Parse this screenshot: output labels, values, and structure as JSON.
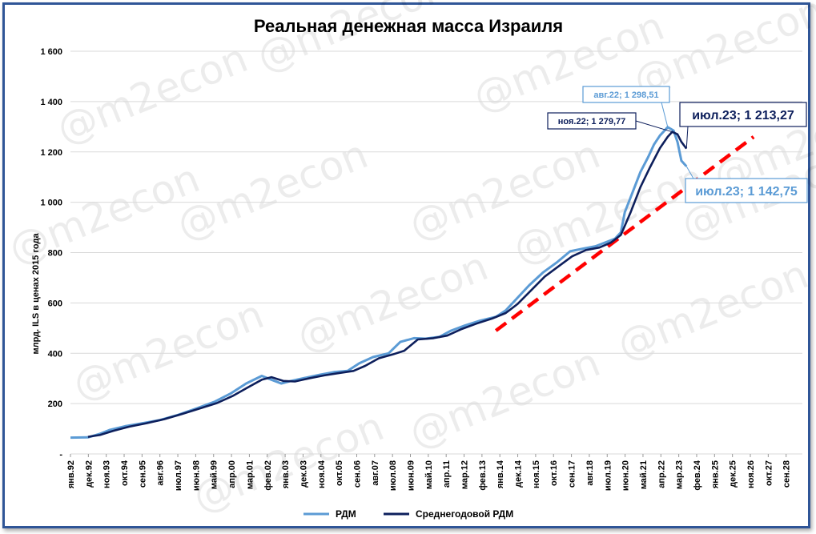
{
  "chart_data": {
    "type": "line",
    "title": "Реальная денежная масса Израиля",
    "xlabel": "",
    "ylabel": "млрд. ILS в ценах 2015 года",
    "ylim": [
      0,
      1600
    ],
    "y_ticks": [
      {
        "value": 0,
        "label": "-"
      },
      {
        "value": 200,
        "label": "200"
      },
      {
        "value": 400,
        "label": "400"
      },
      {
        "value": 600,
        "label": "600"
      },
      {
        "value": 800,
        "label": "800"
      },
      {
        "value": 1000,
        "label": "1 000"
      },
      {
        "value": 1200,
        "label": "1 200"
      },
      {
        "value": 1400,
        "label": "1 400"
      },
      {
        "value": 1600,
        "label": "1 600"
      }
    ],
    "x_tick_labels": [
      "янв.92",
      "дек.92",
      "ноя.93",
      "окт.94",
      "сен.95",
      "авг.96",
      "июл.97",
      "июн.98",
      "май.99",
      "апр.00",
      "мар.01",
      "фев.02",
      "янв.03",
      "дек.03",
      "ноя.04",
      "окт.05",
      "сен.06",
      "авг.07",
      "июл.08",
      "июн.09",
      "май.10",
      "апр.11",
      "мар.12",
      "фев.13",
      "янв.14",
      "дек.14",
      "ноя.15",
      "окт.16",
      "сен.17",
      "авг.18",
      "июл.19",
      "июн.20",
      "май.21",
      "апр.22",
      "мар.23",
      "фев.24",
      "янв.25",
      "дек.25",
      "ноя.26",
      "окт.27",
      "сен.28"
    ],
    "grid": true,
    "legend_position": "bottom",
    "series": [
      {
        "name": "РДМ",
        "color": "#5b9bd5",
        "points": [
          [
            1992.0,
            65
          ],
          [
            1992.9,
            66
          ],
          [
            1993.5,
            80
          ],
          [
            1994.0,
            95
          ],
          [
            1994.8,
            110
          ],
          [
            1995.7,
            122
          ],
          [
            1996.6,
            135
          ],
          [
            1997.5,
            155
          ],
          [
            1998.5,
            182
          ],
          [
            1999.4,
            208
          ],
          [
            2000.2,
            240
          ],
          [
            2001.0,
            280
          ],
          [
            2001.8,
            310
          ],
          [
            2002.3,
            295
          ],
          [
            2002.8,
            280
          ],
          [
            2003.3,
            290
          ],
          [
            2004.0,
            302
          ],
          [
            2004.8,
            315
          ],
          [
            2005.5,
            325
          ],
          [
            2006.2,
            330
          ],
          [
            2006.8,
            360
          ],
          [
            2007.5,
            385
          ],
          [
            2008.3,
            400
          ],
          [
            2008.9,
            445
          ],
          [
            2009.6,
            460
          ],
          [
            2010.2,
            458
          ],
          [
            2010.9,
            465
          ],
          [
            2011.5,
            490
          ],
          [
            2012.2,
            510
          ],
          [
            2013.0,
            530
          ],
          [
            2013.8,
            545
          ],
          [
            2014.3,
            570
          ],
          [
            2014.9,
            620
          ],
          [
            2015.5,
            670
          ],
          [
            2016.2,
            720
          ],
          [
            2016.9,
            760
          ],
          [
            2017.6,
            805
          ],
          [
            2018.2,
            815
          ],
          [
            2018.9,
            825
          ],
          [
            2019.4,
            840
          ],
          [
            2019.9,
            855
          ],
          [
            2020.2,
            880
          ],
          [
            2020.4,
            960
          ],
          [
            2020.8,
            1040
          ],
          [
            2021.2,
            1120
          ],
          [
            2021.6,
            1180
          ],
          [
            2021.9,
            1230
          ],
          [
            2022.2,
            1265
          ],
          [
            2022.6,
            1298.51
          ],
          [
            2022.9,
            1285
          ],
          [
            2023.1,
            1240
          ],
          [
            2023.3,
            1165
          ],
          [
            2023.56,
            1142.75
          ]
        ]
      },
      {
        "name": "Среднегодовой РДМ",
        "color": "#0d1f5c",
        "points": [
          [
            1992.9,
            68
          ],
          [
            1993.5,
            75
          ],
          [
            1994.2,
            92
          ],
          [
            1995.0,
            108
          ],
          [
            1995.9,
            122
          ],
          [
            1996.8,
            138
          ],
          [
            1997.7,
            158
          ],
          [
            1998.6,
            180
          ],
          [
            1999.5,
            202
          ],
          [
            2000.3,
            230
          ],
          [
            2001.1,
            265
          ],
          [
            2001.8,
            295
          ],
          [
            2002.3,
            305
          ],
          [
            2002.9,
            290
          ],
          [
            2003.5,
            288
          ],
          [
            2004.2,
            300
          ],
          [
            2005.0,
            312
          ],
          [
            2005.8,
            322
          ],
          [
            2006.5,
            330
          ],
          [
            2007.1,
            350
          ],
          [
            2007.8,
            380
          ],
          [
            2008.5,
            395
          ],
          [
            2009.1,
            410
          ],
          [
            2009.8,
            455
          ],
          [
            2010.6,
            460
          ],
          [
            2011.3,
            470
          ],
          [
            2012.0,
            495
          ],
          [
            2012.8,
            518
          ],
          [
            2013.6,
            538
          ],
          [
            2014.3,
            560
          ],
          [
            2014.9,
            595
          ],
          [
            2015.6,
            650
          ],
          [
            2016.3,
            705
          ],
          [
            2017.0,
            745
          ],
          [
            2017.7,
            785
          ],
          [
            2018.4,
            810
          ],
          [
            2019.1,
            820
          ],
          [
            2019.7,
            840
          ],
          [
            2020.2,
            870
          ],
          [
            2020.7,
            960
          ],
          [
            2021.2,
            1060
          ],
          [
            2021.7,
            1140
          ],
          [
            2022.2,
            1215
          ],
          [
            2022.6,
            1260
          ],
          [
            2022.83,
            1279.77
          ],
          [
            2023.1,
            1270
          ],
          [
            2023.3,
            1240
          ],
          [
            2023.56,
            1213.27
          ]
        ]
      },
      {
        "name": "",
        "color": "#ff0000",
        "dashed": true,
        "points": [
          [
            2013.8,
            490
          ],
          [
            2027.0,
            1260
          ]
        ]
      }
    ],
    "annotations": [
      {
        "text": "авг.22;  1 298,51",
        "x": 2022.6,
        "y": 1298.51,
        "style": "light-small"
      },
      {
        "text": "ноя.22;  1 279,77",
        "x": 2022.83,
        "y": 1279.77,
        "style": "dark-small"
      },
      {
        "text": "июл.23;  1 213,27",
        "x": 2023.56,
        "y": 1213.27,
        "style": "dark-large"
      },
      {
        "text": "июл.23;  1 142,75",
        "x": 2023.56,
        "y": 1142.75,
        "style": "light-large"
      }
    ],
    "watermark": "@m2econ"
  }
}
